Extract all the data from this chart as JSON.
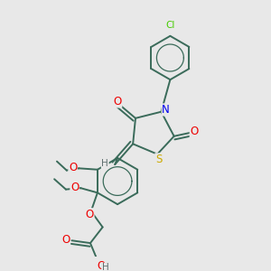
{
  "background_color": "#e8e8e8",
  "line_color": "#3a6b5a",
  "atom_colors": {
    "N": "#0000ee",
    "S": "#ccaa00",
    "O": "#ee0000",
    "Cl": "#44cc00",
    "H": "#607070",
    "C": "#3a6b5a"
  },
  "figsize": [
    3.0,
    3.0
  ],
  "dpi": 100
}
